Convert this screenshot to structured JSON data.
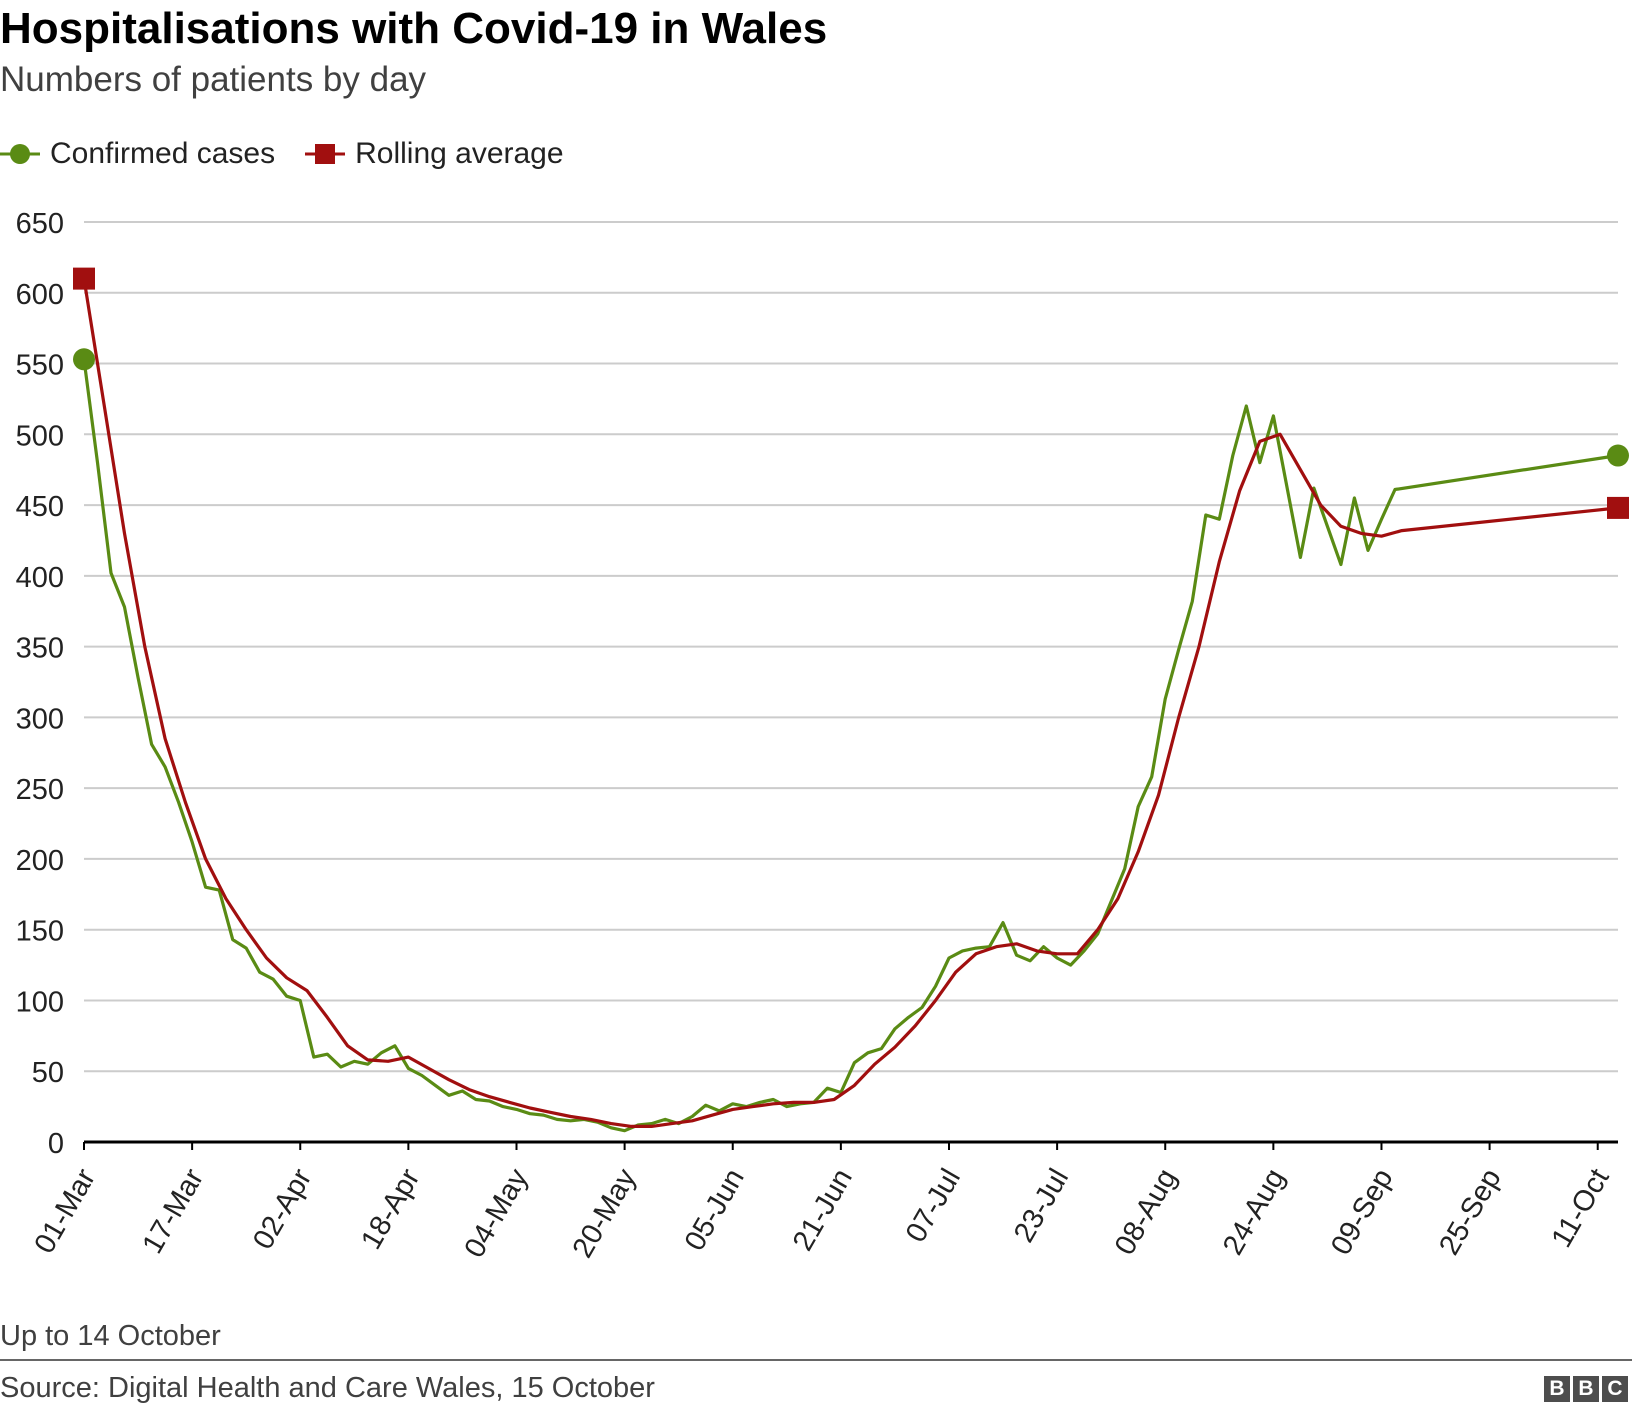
{
  "colors": {
    "confirmed": "#5a8b14",
    "rolling": "#a10f0f",
    "grid": "#cccccc",
    "axis": "#000000",
    "text": "#222222"
  },
  "legend": {
    "confirmed_label": "Confirmed cases",
    "rolling_label": "Rolling average"
  },
  "footer": {
    "note": "Up to 14 October",
    "source": "Source: Digital Health and Care Wales, 15 October",
    "logo_letters": [
      "B",
      "B",
      "C"
    ]
  },
  "chart_data": {
    "type": "line",
    "title": "Hospitalisations with Covid-19 in Wales",
    "subtitle": "Numbers of patients by day",
    "xlabel": "",
    "ylabel": "",
    "x_start": "01-Mar",
    "x_end": "14-Oct",
    "ylim": [
      0,
      650
    ],
    "yticks": [
      0,
      50,
      100,
      150,
      200,
      250,
      300,
      350,
      400,
      450,
      500,
      550,
      600,
      650
    ],
    "xticks": [
      "01-Mar",
      "17-Mar",
      "02-Apr",
      "18-Apr",
      "04-May",
      "20-May",
      "05-Jun",
      "21-Jun",
      "07-Jul",
      "23-Jul",
      "08-Aug",
      "24-Aug",
      "09-Sep",
      "25-Sep",
      "11-Oct"
    ],
    "grid": true,
    "legend_position": "top-left",
    "series": [
      {
        "name": "Confirmed cases",
        "marker": "circle",
        "points": [
          [
            "01-Mar",
            553
          ],
          [
            "03-Mar",
            480
          ],
          [
            "05-Mar",
            402
          ],
          [
            "07-Mar",
            378
          ],
          [
            "09-Mar",
            328
          ],
          [
            "11-Mar",
            281
          ],
          [
            "13-Mar",
            265
          ],
          [
            "15-Mar",
            240
          ],
          [
            "17-Mar",
            212
          ],
          [
            "19-Mar",
            180
          ],
          [
            "21-Mar",
            178
          ],
          [
            "23-Mar",
            143
          ],
          [
            "25-Mar",
            137
          ],
          [
            "27-Mar",
            120
          ],
          [
            "29-Mar",
            115
          ],
          [
            "31-Mar",
            103
          ],
          [
            "02-Apr",
            100
          ],
          [
            "04-Apr",
            60
          ],
          [
            "06-Apr",
            62
          ],
          [
            "08-Apr",
            53
          ],
          [
            "10-Apr",
            57
          ],
          [
            "12-Apr",
            55
          ],
          [
            "14-Apr",
            63
          ],
          [
            "16-Apr",
            68
          ],
          [
            "18-Apr",
            52
          ],
          [
            "20-Apr",
            47
          ],
          [
            "22-Apr",
            40
          ],
          [
            "24-Apr",
            33
          ],
          [
            "26-Apr",
            36
          ],
          [
            "28-Apr",
            30
          ],
          [
            "30-Apr",
            29
          ],
          [
            "02-May",
            25
          ],
          [
            "04-May",
            23
          ],
          [
            "06-May",
            20
          ],
          [
            "08-May",
            19
          ],
          [
            "10-May",
            16
          ],
          [
            "12-May",
            15
          ],
          [
            "14-May",
            16
          ],
          [
            "16-May",
            14
          ],
          [
            "18-May",
            10
          ],
          [
            "20-May",
            8
          ],
          [
            "22-May",
            12
          ],
          [
            "24-May",
            13
          ],
          [
            "26-May",
            16
          ],
          [
            "28-May",
            13
          ],
          [
            "30-May",
            18
          ],
          [
            "01-Jun",
            26
          ],
          [
            "03-Jun",
            22
          ],
          [
            "05-Jun",
            27
          ],
          [
            "07-Jun",
            25
          ],
          [
            "09-Jun",
            28
          ],
          [
            "11-Jun",
            30
          ],
          [
            "13-Jun",
            25
          ],
          [
            "15-Jun",
            27
          ],
          [
            "17-Jun",
            28
          ],
          [
            "19-Jun",
            38
          ],
          [
            "21-Jun",
            35
          ],
          [
            "23-Jun",
            56
          ],
          [
            "25-Jun",
            63
          ],
          [
            "27-Jun",
            66
          ],
          [
            "29-Jun",
            80
          ],
          [
            "01-Jul",
            88
          ],
          [
            "03-Jul",
            95
          ],
          [
            "05-Jul",
            110
          ],
          [
            "07-Jul",
            130
          ],
          [
            "09-Jul",
            135
          ],
          [
            "11-Jul",
            137
          ],
          [
            "13-Jul",
            138
          ],
          [
            "15-Jul",
            155
          ],
          [
            "17-Jul",
            132
          ],
          [
            "19-Jul",
            128
          ],
          [
            "21-Jul",
            138
          ],
          [
            "23-Jul",
            130
          ],
          [
            "25-Jul",
            125
          ],
          [
            "27-Jul",
            135
          ],
          [
            "29-Jul",
            147
          ],
          [
            "31-Jul",
            170
          ],
          [
            "02-Aug",
            193
          ],
          [
            "04-Aug",
            237
          ],
          [
            "06-Aug",
            258
          ],
          [
            "08-Aug",
            313
          ],
          [
            "10-Aug",
            348
          ],
          [
            "12-Aug",
            382
          ],
          [
            "14-Aug",
            443
          ],
          [
            "16-Aug",
            440
          ],
          [
            "18-Aug",
            485
          ],
          [
            "20-Aug",
            520
          ],
          [
            "22-Aug",
            480
          ],
          [
            "24-Aug",
            513
          ],
          [
            "26-Aug",
            463
          ],
          [
            "28-Aug",
            413
          ],
          [
            "30-Aug",
            462
          ],
          [
            "01-Sep",
            435
          ],
          [
            "03-Sep",
            408
          ],
          [
            "05-Sep",
            455
          ],
          [
            "07-Sep",
            418
          ],
          [
            "09-Sep",
            440
          ],
          [
            "11-Sep",
            461
          ],
          [
            "14-Oct",
            485
          ]
        ]
      },
      {
        "name": "Rolling average",
        "marker": "square",
        "points": [
          [
            "01-Mar",
            610
          ],
          [
            "04-Mar",
            520
          ],
          [
            "07-Mar",
            430
          ],
          [
            "10-Mar",
            350
          ],
          [
            "13-Mar",
            285
          ],
          [
            "16-Mar",
            240
          ],
          [
            "19-Mar",
            200
          ],
          [
            "22-Mar",
            172
          ],
          [
            "25-Mar",
            150
          ],
          [
            "28-Mar",
            130
          ],
          [
            "31-Mar",
            116
          ],
          [
            "03-Apr",
            107
          ],
          [
            "06-Apr",
            88
          ],
          [
            "09-Apr",
            68
          ],
          [
            "12-Apr",
            58
          ],
          [
            "15-Apr",
            57
          ],
          [
            "18-Apr",
            60
          ],
          [
            "21-Apr",
            52
          ],
          [
            "24-Apr",
            44
          ],
          [
            "27-Apr",
            37
          ],
          [
            "30-Apr",
            32
          ],
          [
            "03-May",
            28
          ],
          [
            "06-May",
            24
          ],
          [
            "09-May",
            21
          ],
          [
            "12-May",
            18
          ],
          [
            "15-May",
            16
          ],
          [
            "18-May",
            13
          ],
          [
            "21-May",
            11
          ],
          [
            "24-May",
            11
          ],
          [
            "27-May",
            13
          ],
          [
            "30-May",
            15
          ],
          [
            "02-Jun",
            19
          ],
          [
            "05-Jun",
            23
          ],
          [
            "08-Jun",
            25
          ],
          [
            "11-Jun",
            27
          ],
          [
            "14-Jun",
            28
          ],
          [
            "17-Jun",
            28
          ],
          [
            "20-Jun",
            30
          ],
          [
            "23-Jun",
            40
          ],
          [
            "26-Jun",
            55
          ],
          [
            "29-Jun",
            67
          ],
          [
            "02-Jul",
            82
          ],
          [
            "05-Jul",
            100
          ],
          [
            "08-Jul",
            120
          ],
          [
            "11-Jul",
            133
          ],
          [
            "14-Jul",
            138
          ],
          [
            "17-Jul",
            140
          ],
          [
            "20-Jul",
            135
          ],
          [
            "23-Jul",
            133
          ],
          [
            "26-Jul",
            133
          ],
          [
            "29-Jul",
            150
          ],
          [
            "01-Aug",
            172
          ],
          [
            "04-Aug",
            205
          ],
          [
            "07-Aug",
            245
          ],
          [
            "10-Aug",
            300
          ],
          [
            "13-Aug",
            350
          ],
          [
            "16-Aug",
            410
          ],
          [
            "19-Aug",
            460
          ],
          [
            "22-Aug",
            495
          ],
          [
            "25-Aug",
            500
          ],
          [
            "28-Aug",
            475
          ],
          [
            "31-Aug",
            450
          ],
          [
            "03-Sep",
            435
          ],
          [
            "06-Sep",
            430
          ],
          [
            "09-Sep",
            428
          ],
          [
            "12-Sep",
            432
          ],
          [
            "14-Oct",
            448
          ]
        ]
      }
    ]
  }
}
